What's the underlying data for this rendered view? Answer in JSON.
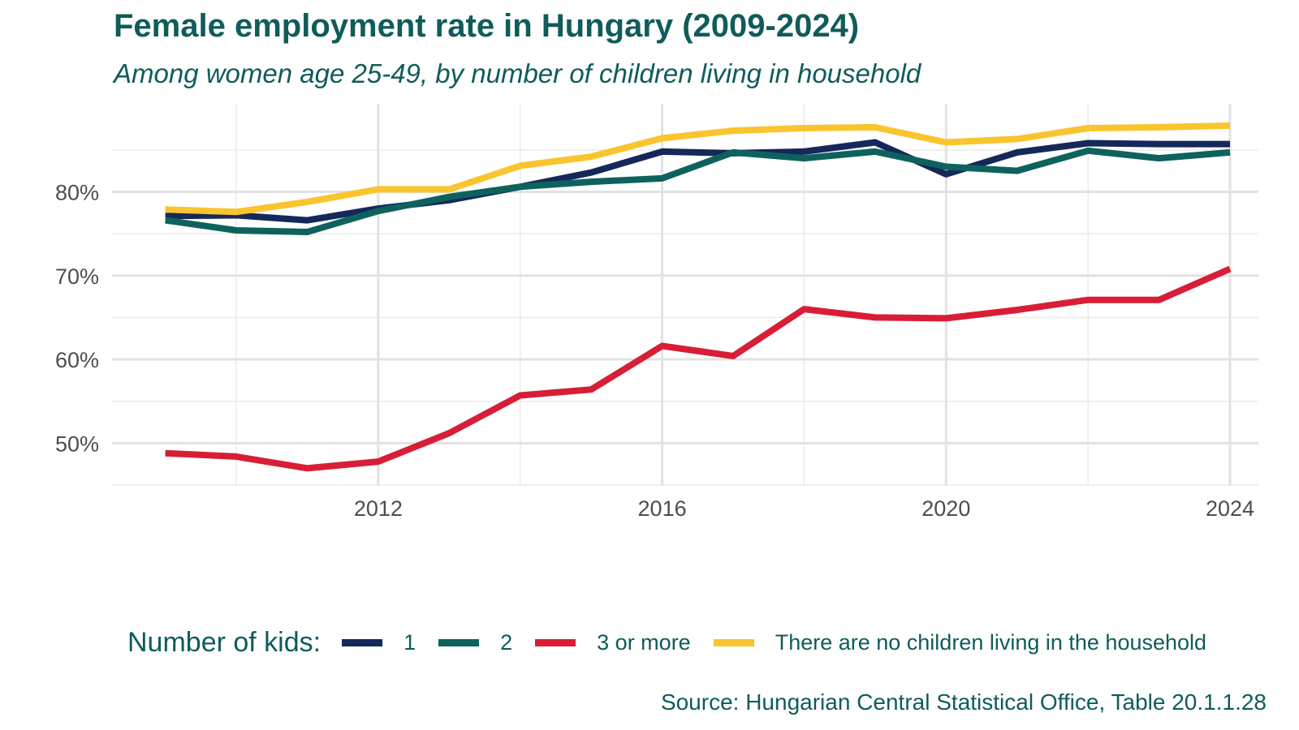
{
  "title": "Female employment rate in Hungary (2009-2024)",
  "subtitle": "Among women age 25-49, by number of children living in household",
  "legend": {
    "title": "Number of kids:",
    "items": [
      {
        "label": "1",
        "color": "#15285a"
      },
      {
        "label": "2",
        "color": "#0e625d"
      },
      {
        "label": "3 or more",
        "color": "#d71e36"
      },
      {
        "label": "There are no children living in the household",
        "color": "#f9c42e"
      }
    ]
  },
  "source": "Source: Hungarian Central Statistical Office, Table 20.1.1.28",
  "chart_data": {
    "type": "line",
    "title": "Female employment rate in Hungary (2009-2024)",
    "subtitle": "Among women age 25-49, by number of children living in household",
    "xlabel": "",
    "ylabel": "",
    "x": [
      2009,
      2010,
      2011,
      2012,
      2013,
      2014,
      2015,
      2016,
      2017,
      2018,
      2019,
      2020,
      2021,
      2022,
      2023,
      2024
    ],
    "xlim": [
      2008.25,
      2024.4
    ],
    "ylim": [
      45,
      90.5
    ],
    "x_ticks": [
      2012,
      2016,
      2020,
      2024
    ],
    "x_tick_labels": [
      "2012",
      "2016",
      "2020",
      "2024"
    ],
    "y_ticks": [
      50,
      60,
      70,
      80
    ],
    "y_tick_labels": [
      "50%",
      "60%",
      "70%",
      "80%"
    ],
    "grid": true,
    "legend_position": "bottom",
    "series": [
      {
        "name": "1",
        "color": "#15285a",
        "values": [
          77.1,
          77.2,
          76.6,
          78.0,
          79.0,
          80.6,
          82.3,
          84.8,
          84.6,
          84.8,
          85.9,
          82.1,
          84.7,
          85.8,
          85.7,
          85.7
        ]
      },
      {
        "name": "2",
        "color": "#0e625d",
        "values": [
          76.6,
          75.4,
          75.2,
          77.7,
          79.4,
          80.6,
          81.2,
          81.6,
          84.7,
          84.0,
          84.8,
          83.0,
          82.5,
          84.9,
          84.0,
          84.7
        ]
      },
      {
        "name": "3 or more",
        "color": "#d71e36",
        "values": [
          48.8,
          48.4,
          47.0,
          47.8,
          51.2,
          55.7,
          56.4,
          61.6,
          60.4,
          66.0,
          65.0,
          64.9,
          65.9,
          67.1,
          67.1,
          70.8
        ]
      },
      {
        "name": "There are no children living in the household",
        "color": "#f9c42e",
        "values": [
          77.9,
          77.6,
          78.8,
          80.3,
          80.3,
          83.1,
          84.2,
          86.4,
          87.3,
          87.6,
          87.7,
          85.9,
          86.3,
          87.6,
          87.7,
          87.9
        ]
      }
    ]
  }
}
